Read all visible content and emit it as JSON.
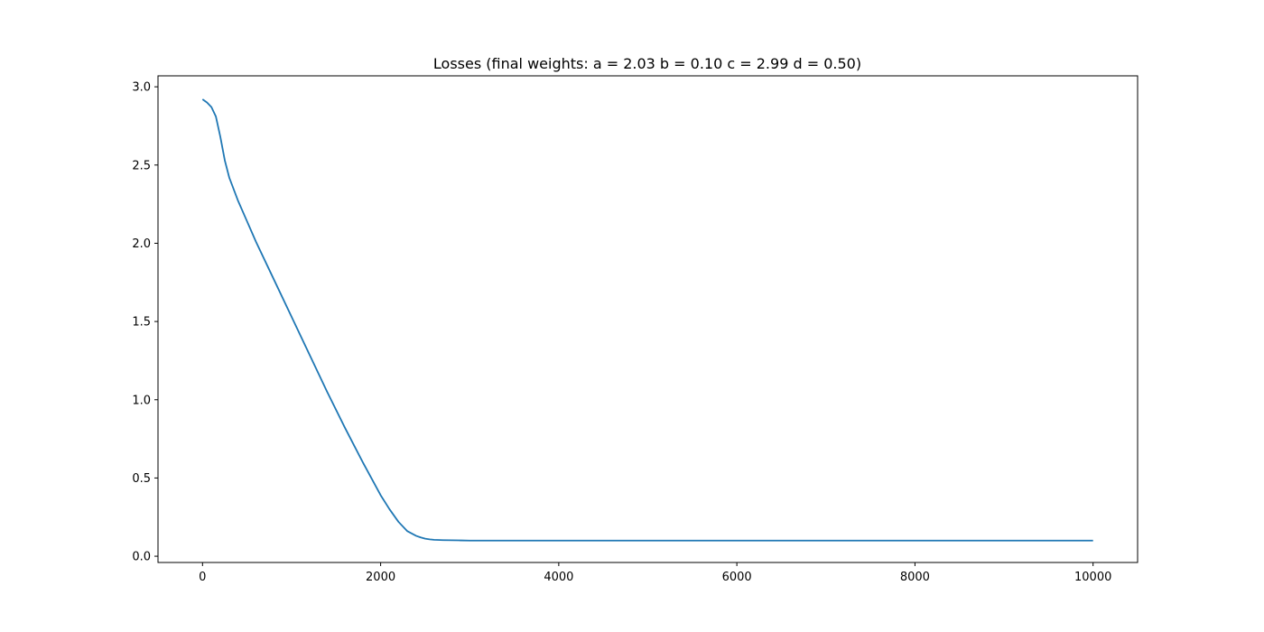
{
  "chart_data": {
    "type": "line",
    "title": "Losses (final weights: a = 2.03 b = 0.10 c = 2.99 d = 0.50)",
    "xlabel": "",
    "ylabel": "",
    "xlim": [
      -500,
      10500
    ],
    "ylim": [
      -0.04,
      3.07
    ],
    "xticks": [
      0,
      2000,
      4000,
      6000,
      8000,
      10000
    ],
    "yticks": [
      0.0,
      0.5,
      1.0,
      1.5,
      2.0,
      2.5,
      3.0
    ],
    "xtick_labels": [
      "0",
      "2000",
      "4000",
      "6000",
      "8000",
      "10000"
    ],
    "ytick_labels": [
      "0.0",
      "0.5",
      "1.0",
      "1.5",
      "2.0",
      "2.5",
      "3.0"
    ],
    "grid": false,
    "series": [
      {
        "color": "#1f77b4",
        "x": [
          0,
          50,
          100,
          150,
          200,
          250,
          300,
          400,
          500,
          600,
          800,
          1000,
          1200,
          1400,
          1600,
          1800,
          2000,
          2100,
          2200,
          2300,
          2400,
          2450,
          2500,
          2550,
          2600,
          2700,
          2800,
          2900,
          3000,
          3200,
          3500,
          4000,
          5000,
          6000,
          7000,
          8000,
          9000,
          10000
        ],
        "y": [
          2.92,
          2.9,
          2.87,
          2.81,
          2.68,
          2.53,
          2.42,
          2.27,
          2.14,
          2.01,
          1.77,
          1.53,
          1.29,
          1.05,
          0.82,
          0.6,
          0.39,
          0.3,
          0.22,
          0.16,
          0.13,
          0.12,
          0.112,
          0.108,
          0.105,
          0.103,
          0.102,
          0.101,
          0.1,
          0.1,
          0.1,
          0.1,
          0.1,
          0.1,
          0.1,
          0.1,
          0.1,
          0.1
        ]
      }
    ]
  }
}
